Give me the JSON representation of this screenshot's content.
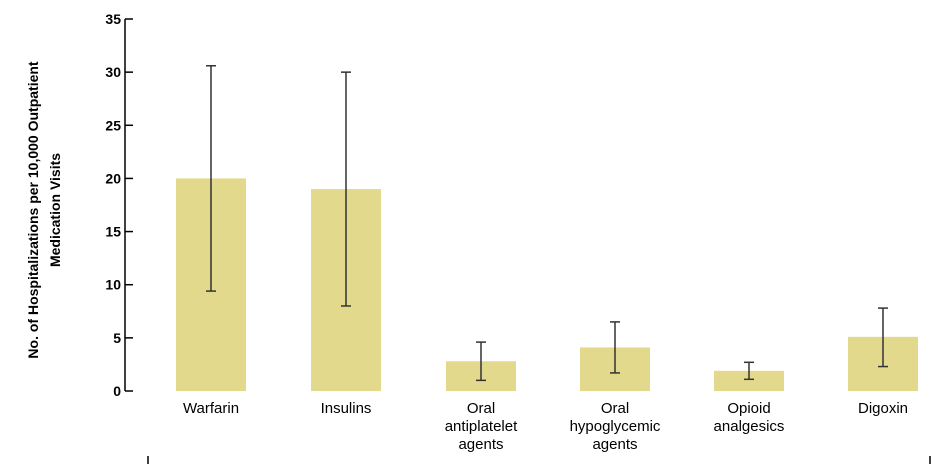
{
  "chart_data": {
    "type": "bar",
    "title": "",
    "xlabel": "",
    "ylabel_lines": [
      "No. of Hospitalizations per 10,000 Outpatient",
      "Medication Visits"
    ],
    "ylim": [
      0,
      35
    ],
    "yticks": [
      0,
      5,
      10,
      15,
      20,
      25,
      30,
      35
    ],
    "grid": false,
    "categories": [
      [
        "Warfarin"
      ],
      [
        "Insulins"
      ],
      [
        "Oral",
        "antiplatelet",
        "agents"
      ],
      [
        "Oral",
        "hypoglycemic",
        "agents"
      ],
      [
        "Opioid",
        "analgesics"
      ],
      [
        "Digoxin"
      ]
    ],
    "values": [
      20.0,
      19.0,
      2.8,
      4.1,
      1.9,
      5.1
    ],
    "error_low": [
      9.4,
      8.0,
      1.0,
      1.7,
      1.1,
      2.3
    ],
    "error_high": [
      30.6,
      30.0,
      4.6,
      6.5,
      2.7,
      7.8
    ],
    "colors": {
      "bar": "#e2d98d",
      "error": "#333333",
      "axis": "#000000"
    }
  }
}
